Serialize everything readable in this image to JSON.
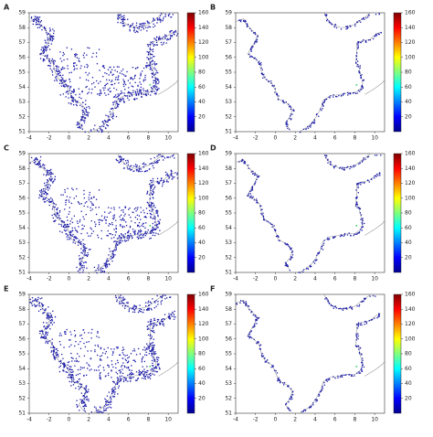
{
  "panels": [
    {
      "label": "A"
    },
    {
      "label": "B"
    },
    {
      "label": "C"
    },
    {
      "label": "D"
    },
    {
      "label": "E"
    },
    {
      "label": "F"
    }
  ],
  "xlim": [
    -4,
    11
  ],
  "xticks": [
    -4,
    -2,
    0,
    2,
    4,
    6,
    8,
    10
  ],
  "ylim": [
    51,
    59
  ],
  "yticks": [
    51,
    52,
    53,
    54,
    55,
    56,
    57,
    58,
    59
  ],
  "clim": [
    0,
    160
  ],
  "colorbar_ticks": [
    20,
    40,
    60,
    80,
    100,
    120,
    140,
    160
  ]
}
